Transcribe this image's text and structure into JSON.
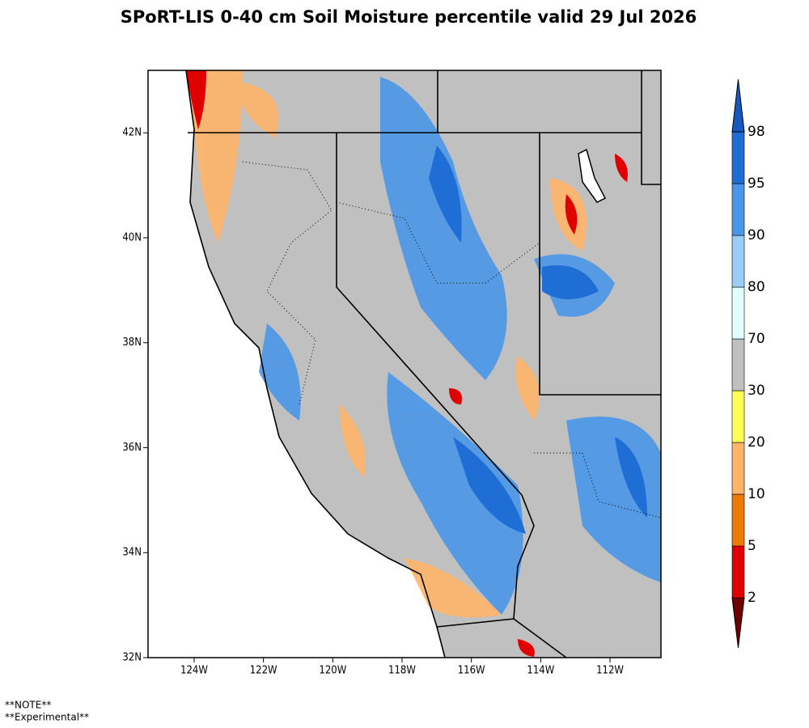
{
  "title": "SPoRT-LIS 0-40 cm Soil Moisture percentile valid 29 Jul 2026",
  "map": {
    "xlim": [
      -125.33,
      -110.53
    ],
    "ylim": [
      32,
      43.19
    ],
    "xticks": [
      {
        "value": -124,
        "label": "124W"
      },
      {
        "value": -122,
        "label": "122W"
      },
      {
        "value": -120,
        "label": "120W"
      },
      {
        "value": -118,
        "label": "118W"
      },
      {
        "value": -116,
        "label": "116W"
      },
      {
        "value": -114,
        "label": "114W"
      },
      {
        "value": -112,
        "label": "112W"
      }
    ],
    "yticks": [
      {
        "value": 32,
        "label": "32N"
      },
      {
        "value": 34,
        "label": "34N"
      },
      {
        "value": 36,
        "label": "36N"
      },
      {
        "value": 38,
        "label": "38N"
      },
      {
        "value": 40,
        "label": "40N"
      },
      {
        "value": 42,
        "label": "42N"
      }
    ]
  },
  "colorbar": {
    "levels": [
      2,
      5,
      10,
      20,
      30,
      70,
      80,
      90,
      95,
      98
    ],
    "colors": [
      "#6e0000",
      "#e00000",
      "#ee7a00",
      "#ffb469",
      "#ffff55",
      "#c0c0c0",
      "#e0ffff",
      "#98cef5",
      "#4a96e8",
      "#1e6ed6",
      "#1558c0"
    ]
  },
  "notes": [
    "**NOTE**",
    "**Experimental**"
  ]
}
